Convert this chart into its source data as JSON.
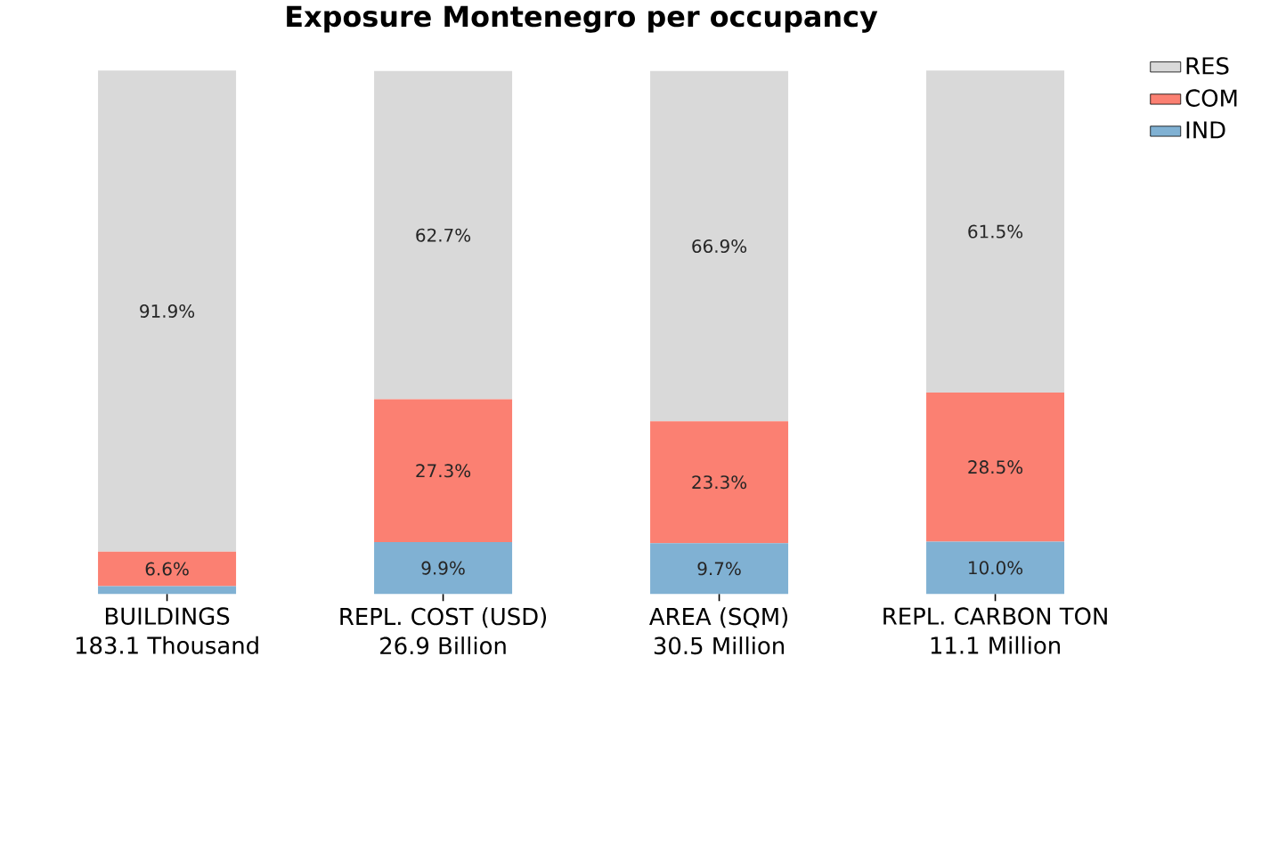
{
  "chart_data": {
    "type": "bar",
    "title": "Exposure Montenegro per occupancy",
    "categories": [
      "BUILDINGS\n183.1 Thousand",
      "REPL. COST (USD)\n26.9 Billion",
      "AREA (SQM)\n30.5 Million",
      "REPL. CARBON TON\n11.1 Million"
    ],
    "stacked": true,
    "legend": "top right",
    "ylim": [
      0,
      100
    ],
    "series": [
      {
        "name": "IND",
        "color": "#80b1d3",
        "values": [
          1.5,
          9.9,
          9.7,
          10.0
        ],
        "value_labels": [
          null,
          "9.9%",
          "9.7%",
          "10.0%"
        ]
      },
      {
        "name": "COM",
        "color": "#fb8072",
        "values": [
          6.6,
          27.3,
          23.3,
          28.5
        ],
        "value_labels": [
          "6.6%",
          "27.3%",
          "23.3%",
          "28.5%"
        ]
      },
      {
        "name": "RES",
        "color": "#d9d9d9",
        "values": [
          91.9,
          62.7,
          66.9,
          61.5
        ],
        "value_labels": [
          "91.9%",
          "62.7%",
          "66.9%",
          "61.5%"
        ]
      }
    ]
  }
}
